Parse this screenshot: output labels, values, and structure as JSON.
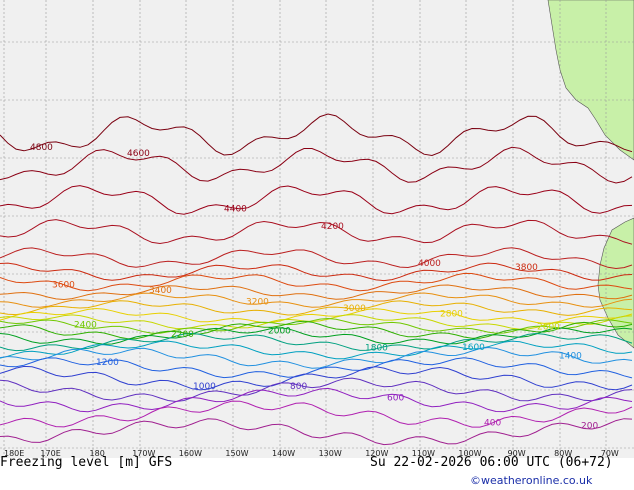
{
  "map": {
    "title_left": "Freezing level [m] GFS",
    "title_right": "Su 22-02-2026 06:00 UTC (06+72)",
    "credit": "©weatheronline.co.uk",
    "colors": {
      "ocean": "#f0f0f0",
      "land": "#c8f0a8",
      "grid": "#9a9a9a"
    },
    "lon_ticks": [
      "180E",
      "170E",
      "180",
      "170W",
      "160W",
      "150W",
      "140W",
      "130W",
      "120W",
      "110W",
      "100W",
      "90W",
      "80W",
      "70W"
    ],
    "contour_labels": [
      {
        "text": "4800",
        "color": "#7a0010"
      },
      {
        "text": "4600",
        "color": "#8a0014"
      },
      {
        "text": "4400",
        "color": "#9a0018"
      },
      {
        "text": "4200",
        "color": "#aa1020"
      },
      {
        "text": "4000",
        "color": "#bb2020"
      },
      {
        "text": "3800",
        "color": "#cc2a10"
      },
      {
        "text": "3600",
        "color": "#dd4a10"
      },
      {
        "text": "3400",
        "color": "#e07010"
      },
      {
        "text": "3200",
        "color": "#e89010"
      },
      {
        "text": "3000",
        "color": "#e8b000"
      },
      {
        "text": "2800",
        "color": "#e8d000"
      },
      {
        "text": "2600",
        "color": "#c8d800"
      },
      {
        "text": "2400",
        "color": "#70c800"
      },
      {
        "text": "2200",
        "color": "#30b000"
      },
      {
        "text": "2000",
        "color": "#00a020"
      },
      {
        "text": "1800",
        "color": "#00a080"
      },
      {
        "text": "1600",
        "color": "#00a0c0"
      },
      {
        "text": "1400",
        "color": "#2090e0"
      },
      {
        "text": "1200",
        "color": "#2060e0"
      },
      {
        "text": "1000",
        "color": "#3040d0"
      },
      {
        "text": "800",
        "color": "#6030c0"
      },
      {
        "text": "600",
        "color": "#9020c0"
      },
      {
        "text": "400",
        "color": "#b020b0"
      },
      {
        "text": "200",
        "color": "#a02090"
      }
    ]
  }
}
